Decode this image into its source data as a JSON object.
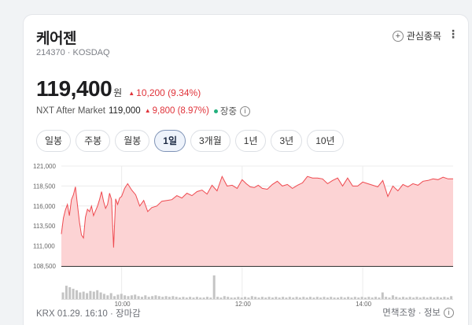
{
  "stock": {
    "name": "케어젠",
    "code_market": "214370 · KOSDAQ",
    "price": "119,400",
    "unit": "원",
    "change": "10,200 (9.34%)"
  },
  "header": {
    "fav_label": "관심종목",
    "more_icon": "more-vertical-icon"
  },
  "nxt": {
    "label": "NXT After Market",
    "price": "119,000",
    "change": "9,800 (8.97%)",
    "status": "장중"
  },
  "tabs": [
    {
      "label": "일봉"
    },
    {
      "label": "주봉"
    },
    {
      "label": "월봉"
    },
    {
      "label": "1일",
      "active": true
    },
    {
      "label": "3개월"
    },
    {
      "label": "1년"
    },
    {
      "label": "3년"
    },
    {
      "label": "10년"
    }
  ],
  "footer": {
    "left": "KRX 01.29. 16:10 · 장마감",
    "right": "면책조항 · 정보"
  },
  "colors": {
    "up": "#e0333a",
    "area": "#fcd3d4",
    "line": "#ef4a50",
    "volume": "#c4c4c4"
  },
  "chart_data": {
    "type": "area",
    "y_ticks": [
      "121,000",
      "118,500",
      "116,000",
      "113,500",
      "111,000",
      "108,500"
    ],
    "ylim": [
      108500,
      121000
    ],
    "x_ticks": [
      {
        "label": "10:00",
        "t": 60
      },
      {
        "label": "12:00",
        "t": 180
      },
      {
        "label": "14:00",
        "t": 300
      }
    ],
    "x_range": [
      0,
      390
    ],
    "series": [
      {
        "t": [
          0,
          2,
          4,
          6,
          8,
          10,
          12,
          14,
          16,
          18,
          20,
          22,
          24,
          26,
          28,
          30,
          32,
          34,
          36,
          38,
          40,
          42,
          44,
          46,
          48,
          50,
          52,
          54,
          56,
          58,
          60,
          63,
          66,
          70,
          74,
          78,
          82,
          86,
          90,
          95,
          100,
          105,
          110,
          115,
          120,
          125,
          130,
          135,
          140,
          145,
          150,
          155,
          160,
          165,
          170,
          175,
          180,
          184,
          188,
          192,
          196,
          200,
          205,
          210,
          215,
          220,
          225,
          230,
          235,
          240,
          245,
          250,
          255,
          260,
          265,
          270,
          275,
          280,
          285,
          290,
          295,
          300,
          305,
          310,
          315,
          320,
          325,
          330,
          335,
          340,
          345,
          350,
          355,
          360,
          365,
          370,
          375,
          380,
          385,
          390
        ],
        "values": [
          112500,
          114500,
          115500,
          116200,
          114800,
          116800,
          117400,
          118400,
          116200,
          114000,
          112400,
          112000,
          114600,
          115600,
          115300,
          116000,
          114800,
          115400,
          116000,
          116800,
          117800,
          116600,
          115700,
          116200,
          117600,
          116800,
          110800,
          116900,
          116200,
          117000,
          117200,
          118200,
          118800,
          118000,
          117400,
          116000,
          116700,
          115300,
          115800,
          116000,
          116600,
          116700,
          116800,
          117300,
          117000,
          117600,
          117300,
          117800,
          118000,
          117500,
          118600,
          117900,
          119700,
          118500,
          118600,
          118200,
          119300,
          118800,
          118400,
          118300,
          118600,
          118200,
          118100,
          118700,
          119100,
          118500,
          118700,
          118200,
          118600,
          118900,
          119700,
          119500,
          119500,
          119400,
          118800,
          119200,
          119500,
          118500,
          119500,
          118500,
          118500,
          119000,
          118800,
          118600,
          118400,
          119200,
          117200,
          118500,
          117900,
          118700,
          118400,
          118800,
          118600,
          119100,
          119200,
          119400,
          119300,
          119600,
          119400,
          119400
        ]
      }
    ],
    "volume": [
      9,
      18,
      16,
      14,
      12,
      9,
      10,
      8,
      11,
      10,
      12,
      9,
      7,
      5,
      8,
      4,
      6,
      7,
      5,
      4,
      5,
      6,
      4,
      3,
      5,
      3,
      4,
      5,
      4,
      3,
      4,
      3,
      4,
      3,
      2,
      3,
      2,
      3,
      2,
      3,
      2,
      2,
      3,
      2,
      32,
      3,
      2,
      4,
      3,
      2,
      2,
      3,
      2,
      3,
      2,
      4,
      3,
      2,
      3,
      2,
      3,
      2,
      3,
      2,
      3,
      2,
      3,
      2,
      3,
      2,
      3,
      2,
      3,
      2,
      3,
      2,
      3,
      2,
      3,
      2,
      2,
      3,
      2,
      3,
      2,
      3,
      2,
      3,
      2,
      3,
      2,
      3,
      2,
      9,
      3,
      2,
      5,
      3,
      2,
      3,
      2,
      3,
      2,
      3,
      2,
      3,
      2,
      3,
      2,
      3,
      2,
      3,
      2,
      4
    ]
  }
}
